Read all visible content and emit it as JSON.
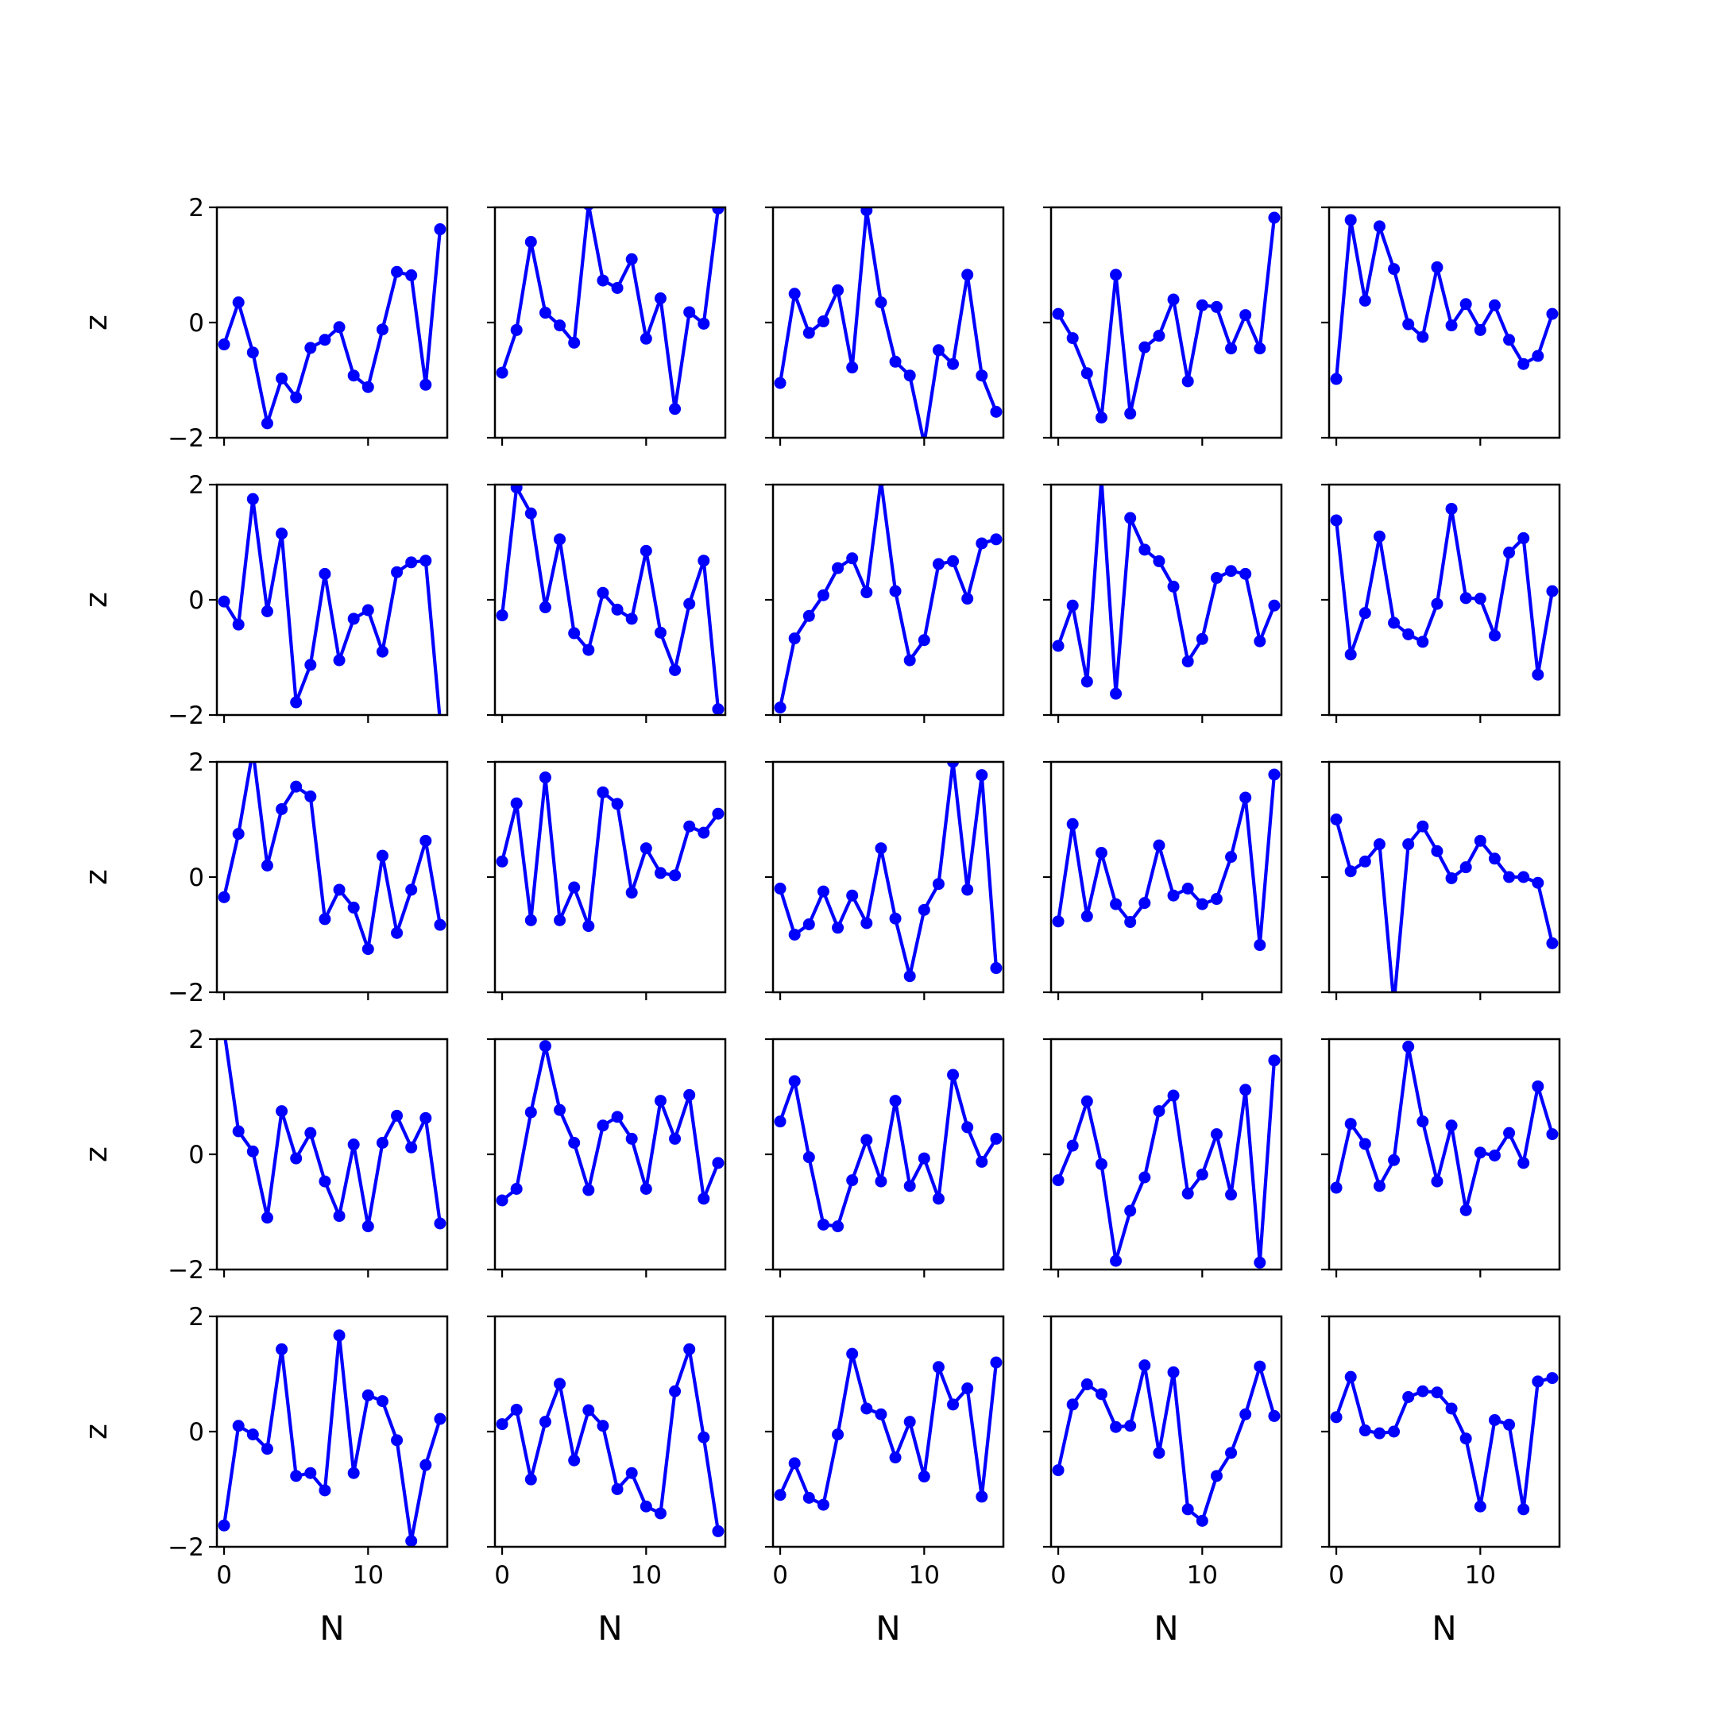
{
  "figure": {
    "ylabel": "z",
    "xlabel": "N",
    "line_color": "#0000ff",
    "x_ticks": [
      0,
      10
    ],
    "x_tick_labels": [
      "0",
      "10"
    ],
    "y_ticks": [
      -2,
      0,
      2
    ],
    "y_tick_labels": [
      "−2",
      "0",
      "2"
    ]
  },
  "chart_data": [
    {
      "type": "line",
      "row": 1,
      "col": 1,
      "xlim": [
        -0.5,
        15.5
      ],
      "ylim": [
        -2,
        2
      ],
      "x": [
        0,
        1,
        2,
        3,
        4,
        5,
        6,
        7,
        8,
        9,
        10,
        11,
        12,
        13,
        14,
        15
      ],
      "y": [
        -0.38,
        0.35,
        -0.52,
        -1.75,
        -0.97,
        -1.3,
        -0.44,
        -0.3,
        -0.08,
        -0.92,
        -1.12,
        -0.12,
        0.88,
        0.82,
        -1.08,
        1.62
      ]
    },
    {
      "type": "line",
      "row": 1,
      "col": 2,
      "xlim": [
        -0.5,
        15.5
      ],
      "ylim": [
        -2,
        2
      ],
      "x": [
        0,
        1,
        2,
        3,
        4,
        5,
        6,
        7,
        8,
        9,
        10,
        11,
        12,
        13,
        14,
        15
      ],
      "y": [
        -0.87,
        -0.13,
        1.4,
        0.17,
        -0.05,
        -0.35,
        2.05,
        0.73,
        0.6,
        1.1,
        -0.28,
        0.42,
        -1.5,
        0.18,
        -0.02,
        1.98
      ]
    },
    {
      "type": "line",
      "row": 1,
      "col": 3,
      "xlim": [
        -0.5,
        15.5
      ],
      "ylim": [
        -2,
        2
      ],
      "x": [
        0,
        1,
        2,
        3,
        4,
        5,
        6,
        7,
        8,
        9,
        10,
        11,
        12,
        13,
        14,
        15
      ],
      "y": [
        -1.05,
        0.5,
        -0.18,
        0.02,
        0.56,
        -0.78,
        1.95,
        0.35,
        -0.68,
        -0.92,
        -2.1,
        -0.48,
        -0.72,
        0.83,
        -0.92,
        -1.55
      ]
    },
    {
      "type": "line",
      "row": 1,
      "col": 4,
      "xlim": [
        -0.5,
        15.5
      ],
      "ylim": [
        -2,
        2
      ],
      "x": [
        0,
        1,
        2,
        3,
        4,
        5,
        6,
        7,
        8,
        9,
        10,
        11,
        12,
        13,
        14,
        15
      ],
      "y": [
        0.15,
        -0.27,
        -0.88,
        -1.65,
        0.83,
        -1.58,
        -0.43,
        -0.23,
        0.4,
        -1.02,
        0.3,
        0.27,
        -0.45,
        0.13,
        -0.45,
        1.82
      ]
    },
    {
      "type": "line",
      "row": 1,
      "col": 5,
      "xlim": [
        -0.5,
        15.5
      ],
      "ylim": [
        -2,
        2
      ],
      "x": [
        0,
        1,
        2,
        3,
        4,
        5,
        6,
        7,
        8,
        9,
        10,
        11,
        12,
        13,
        14,
        15
      ],
      "y": [
        -0.98,
        1.78,
        0.38,
        1.67,
        0.93,
        -0.03,
        -0.25,
        0.96,
        -0.05,
        0.32,
        -0.13,
        0.3,
        -0.3,
        -0.72,
        -0.58,
        0.15
      ]
    },
    {
      "type": "line",
      "row": 2,
      "col": 1,
      "xlim": [
        -0.5,
        15.5
      ],
      "ylim": [
        -2,
        2
      ],
      "x": [
        0,
        1,
        2,
        3,
        4,
        5,
        6,
        7,
        8,
        9,
        10,
        11,
        12,
        13,
        14,
        15
      ],
      "y": [
        -0.03,
        -0.43,
        1.75,
        -0.2,
        1.15,
        -1.78,
        -1.13,
        0.45,
        -1.05,
        -0.33,
        -0.18,
        -0.9,
        0.48,
        0.65,
        0.68,
        -2.1
      ]
    },
    {
      "type": "line",
      "row": 2,
      "col": 2,
      "xlim": [
        -0.5,
        15.5
      ],
      "ylim": [
        -2,
        2
      ],
      "x": [
        0,
        1,
        2,
        3,
        4,
        5,
        6,
        7,
        8,
        9,
        10,
        11,
        12,
        13,
        14,
        15
      ],
      "y": [
        -0.27,
        1.95,
        1.5,
        -0.13,
        1.05,
        -0.58,
        -0.87,
        0.12,
        -0.17,
        -0.33,
        0.85,
        -0.57,
        -1.22,
        -0.07,
        0.68,
        -1.9
      ]
    },
    {
      "type": "line",
      "row": 2,
      "col": 3,
      "xlim": [
        -0.5,
        15.5
      ],
      "ylim": [
        -2,
        2
      ],
      "x": [
        0,
        1,
        2,
        3,
        4,
        5,
        6,
        7,
        8,
        9,
        10,
        11,
        12,
        13,
        14,
        15
      ],
      "y": [
        -1.87,
        -0.67,
        -0.28,
        0.08,
        0.55,
        0.72,
        0.13,
        2.07,
        0.15,
        -1.05,
        -0.7,
        0.62,
        0.67,
        0.02,
        0.98,
        1.05
      ]
    },
    {
      "type": "line",
      "row": 2,
      "col": 4,
      "xlim": [
        -0.5,
        15.5
      ],
      "ylim": [
        -2,
        2
      ],
      "x": [
        0,
        1,
        2,
        3,
        4,
        5,
        6,
        7,
        8,
        9,
        10,
        11,
        12,
        13,
        14,
        15
      ],
      "y": [
        -0.8,
        -0.1,
        -1.42,
        2.1,
        -1.63,
        1.42,
        0.87,
        0.67,
        0.23,
        -1.07,
        -0.68,
        0.38,
        0.5,
        0.45,
        -0.72,
        -0.1
      ]
    },
    {
      "type": "line",
      "row": 2,
      "col": 5,
      "xlim": [
        -0.5,
        15.5
      ],
      "ylim": [
        -2,
        2
      ],
      "x": [
        0,
        1,
        2,
        3,
        4,
        5,
        6,
        7,
        8,
        9,
        10,
        11,
        12,
        13,
        14,
        15
      ],
      "y": [
        1.38,
        -0.95,
        -0.23,
        1.1,
        -0.4,
        -0.6,
        -0.73,
        -0.07,
        1.58,
        0.03,
        0.02,
        -0.62,
        0.82,
        1.07,
        -1.3,
        0.15
      ]
    },
    {
      "type": "line",
      "row": 3,
      "col": 1,
      "xlim": [
        -0.5,
        15.5
      ],
      "ylim": [
        -2,
        2
      ],
      "x": [
        0,
        1,
        2,
        3,
        4,
        5,
        6,
        7,
        8,
        9,
        10,
        11,
        12,
        13,
        14,
        15
      ],
      "y": [
        -0.35,
        0.75,
        2.2,
        0.2,
        1.18,
        1.57,
        1.4,
        -0.73,
        -0.22,
        -0.53,
        -1.25,
        0.37,
        -0.97,
        -0.22,
        0.63,
        -0.83
      ]
    },
    {
      "type": "line",
      "row": 3,
      "col": 2,
      "xlim": [
        -0.5,
        15.5
      ],
      "ylim": [
        -2,
        2
      ],
      "x": [
        0,
        1,
        2,
        3,
        4,
        5,
        6,
        7,
        8,
        9,
        10,
        11,
        12,
        13,
        14,
        15
      ],
      "y": [
        0.27,
        1.28,
        -0.75,
        1.73,
        -0.75,
        -0.18,
        -0.85,
        1.47,
        1.27,
        -0.27,
        0.5,
        0.07,
        0.03,
        0.88,
        0.77,
        1.1
      ]
    },
    {
      "type": "line",
      "row": 3,
      "col": 3,
      "xlim": [
        -0.5,
        15.5
      ],
      "ylim": [
        -2,
        2
      ],
      "x": [
        0,
        1,
        2,
        3,
        4,
        5,
        6,
        7,
        8,
        9,
        10,
        11,
        12,
        13,
        14,
        15
      ],
      "y": [
        -0.2,
        -1.0,
        -0.82,
        -0.25,
        -0.88,
        -0.32,
        -0.8,
        0.5,
        -0.72,
        -1.72,
        -0.57,
        -0.12,
        2.0,
        -0.22,
        1.77,
        -1.58
      ]
    },
    {
      "type": "line",
      "row": 3,
      "col": 4,
      "xlim": [
        -0.5,
        15.5
      ],
      "ylim": [
        -2,
        2
      ],
      "x": [
        0,
        1,
        2,
        3,
        4,
        5,
        6,
        7,
        8,
        9,
        10,
        11,
        12,
        13,
        14,
        15
      ],
      "y": [
        -0.77,
        0.92,
        -0.68,
        0.42,
        -0.47,
        -0.78,
        -0.45,
        0.55,
        -0.32,
        -0.2,
        -0.47,
        -0.38,
        0.35,
        1.38,
        -1.18,
        1.78
      ]
    },
    {
      "type": "line",
      "row": 3,
      "col": 5,
      "xlim": [
        -0.5,
        15.5
      ],
      "ylim": [
        -2,
        2
      ],
      "x": [
        0,
        1,
        2,
        3,
        4,
        5,
        6,
        7,
        8,
        9,
        10,
        11,
        12,
        13,
        14,
        15
      ],
      "y": [
        1.0,
        0.1,
        0.27,
        0.57,
        -2.2,
        0.57,
        0.88,
        0.45,
        -0.02,
        0.17,
        0.63,
        0.32,
        0.0,
        0.0,
        -0.1,
        -1.15
      ]
    },
    {
      "type": "line",
      "row": 4,
      "col": 1,
      "xlim": [
        -0.5,
        15.5
      ],
      "ylim": [
        -2,
        2
      ],
      "x": [
        0,
        1,
        2,
        3,
        4,
        5,
        6,
        7,
        8,
        9,
        10,
        11,
        12,
        13,
        14,
        15
      ],
      "y": [
        2.15,
        0.4,
        0.05,
        -1.1,
        0.75,
        -0.07,
        0.37,
        -0.47,
        -1.07,
        0.17,
        -1.25,
        0.2,
        0.67,
        0.12,
        0.63,
        -1.2
      ]
    },
    {
      "type": "line",
      "row": 4,
      "col": 2,
      "xlim": [
        -0.5,
        15.5
      ],
      "ylim": [
        -2,
        2
      ],
      "x": [
        0,
        1,
        2,
        3,
        4,
        5,
        6,
        7,
        8,
        9,
        10,
        11,
        12,
        13,
        14,
        15
      ],
      "y": [
        -0.8,
        -0.6,
        0.73,
        1.88,
        0.77,
        0.2,
        -0.62,
        0.5,
        0.65,
        0.27,
        -0.6,
        0.93,
        0.27,
        1.03,
        -0.77,
        -0.15
      ]
    },
    {
      "type": "line",
      "row": 4,
      "col": 3,
      "xlim": [
        -0.5,
        15.5
      ],
      "ylim": [
        -2,
        2
      ],
      "x": [
        0,
        1,
        2,
        3,
        4,
        5,
        6,
        7,
        8,
        9,
        10,
        11,
        12,
        13,
        14,
        15
      ],
      "y": [
        0.57,
        1.27,
        -0.05,
        -1.22,
        -1.25,
        -0.45,
        0.25,
        -0.47,
        0.93,
        -0.55,
        -0.07,
        -0.77,
        1.38,
        0.47,
        -0.13,
        0.27
      ]
    },
    {
      "type": "line",
      "row": 4,
      "col": 4,
      "xlim": [
        -0.5,
        15.5
      ],
      "ylim": [
        -2,
        2
      ],
      "x": [
        0,
        1,
        2,
        3,
        4,
        5,
        6,
        7,
        8,
        9,
        10,
        11,
        12,
        13,
        14,
        15
      ],
      "y": [
        -0.45,
        0.15,
        0.92,
        -0.17,
        -1.85,
        -0.98,
        -0.4,
        0.75,
        1.02,
        -0.68,
        -0.35,
        0.35,
        -0.7,
        1.12,
        -1.88,
        1.63
      ]
    },
    {
      "type": "line",
      "row": 4,
      "col": 5,
      "xlim": [
        -0.5,
        15.5
      ],
      "ylim": [
        -2,
        2
      ],
      "x": [
        0,
        1,
        2,
        3,
        4,
        5,
        6,
        7,
        8,
        9,
        10,
        11,
        12,
        13,
        14,
        15
      ],
      "y": [
        -0.58,
        0.53,
        0.18,
        -0.55,
        -0.1,
        1.87,
        0.57,
        -0.47,
        0.5,
        -0.97,
        0.03,
        -0.02,
        0.37,
        -0.15,
        1.18,
        0.35
      ]
    },
    {
      "type": "line",
      "row": 5,
      "col": 1,
      "xlim": [
        -0.5,
        15.5
      ],
      "ylim": [
        -2,
        2
      ],
      "x": [
        0,
        1,
        2,
        3,
        4,
        5,
        6,
        7,
        8,
        9,
        10,
        11,
        12,
        13,
        14,
        15
      ],
      "y": [
        -1.63,
        0.1,
        -0.05,
        -0.3,
        1.43,
        -0.77,
        -0.72,
        -1.02,
        1.67,
        -0.72,
        0.63,
        0.53,
        -0.15,
        -1.9,
        -0.58,
        0.22
      ]
    },
    {
      "type": "line",
      "row": 5,
      "col": 2,
      "xlim": [
        -0.5,
        15.5
      ],
      "ylim": [
        -2,
        2
      ],
      "x": [
        0,
        1,
        2,
        3,
        4,
        5,
        6,
        7,
        8,
        9,
        10,
        11,
        12,
        13,
        14,
        15
      ],
      "y": [
        0.13,
        0.38,
        -0.83,
        0.17,
        0.83,
        -0.5,
        0.37,
        0.1,
        -1.0,
        -0.72,
        -1.3,
        -1.42,
        0.7,
        1.43,
        -0.1,
        -1.73
      ]
    },
    {
      "type": "line",
      "row": 5,
      "col": 3,
      "xlim": [
        -0.5,
        15.5
      ],
      "ylim": [
        -2,
        2
      ],
      "x": [
        0,
        1,
        2,
        3,
        4,
        5,
        6,
        7,
        8,
        9,
        10,
        11,
        12,
        13,
        14,
        15
      ],
      "y": [
        -1.1,
        -0.55,
        -1.15,
        -1.27,
        -0.05,
        1.35,
        0.4,
        0.3,
        -0.45,
        0.17,
        -0.78,
        1.12,
        0.47,
        0.75,
        -1.13,
        1.2
      ]
    },
    {
      "type": "line",
      "row": 5,
      "col": 4,
      "xlim": [
        -0.5,
        15.5
      ],
      "ylim": [
        -2,
        2
      ],
      "x": [
        0,
        1,
        2,
        3,
        4,
        5,
        6,
        7,
        8,
        9,
        10,
        11,
        12,
        13,
        14,
        15
      ],
      "y": [
        -0.67,
        0.47,
        0.82,
        0.65,
        0.08,
        0.1,
        1.15,
        -0.37,
        1.03,
        -1.35,
        -1.55,
        -0.77,
        -0.37,
        0.3,
        1.13,
        0.27
      ]
    },
    {
      "type": "line",
      "row": 5,
      "col": 5,
      "xlim": [
        -0.5,
        15.5
      ],
      "ylim": [
        -2,
        2
      ],
      "x": [
        0,
        1,
        2,
        3,
        4,
        5,
        6,
        7,
        8,
        9,
        10,
        11,
        12,
        13,
        14,
        15
      ],
      "y": [
        0.25,
        0.95,
        0.02,
        -0.03,
        0.0,
        0.6,
        0.7,
        0.68,
        0.4,
        -0.12,
        -1.3,
        0.2,
        0.12,
        -1.35,
        0.87,
        0.93
      ]
    }
  ]
}
